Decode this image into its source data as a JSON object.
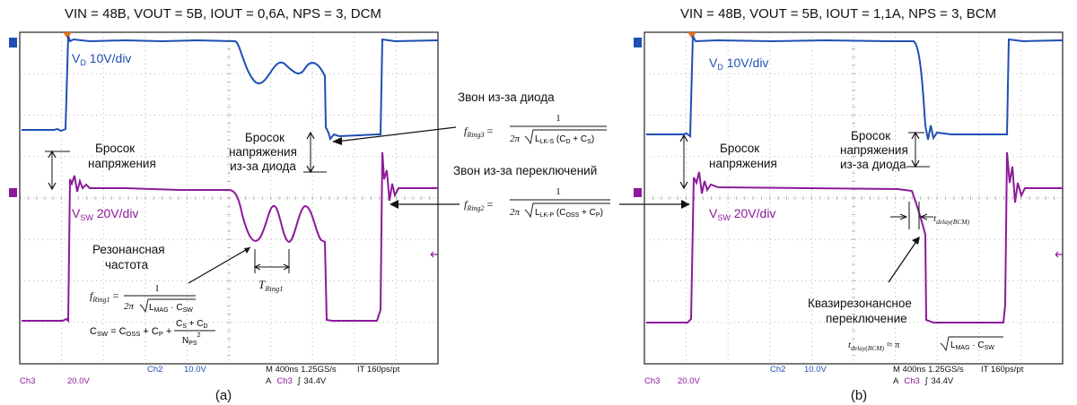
{
  "colors": {
    "vd": "#1f4fb4",
    "vsw": "#8c1a9a",
    "grid": "#b8b8b8",
    "frame": "#222222",
    "marker": "#e07020"
  },
  "panel_a": {
    "title": "VIN = 48В, VOUT = 5В, IOUT = 0,6А, NPS = 3, DCM",
    "vd_label_main": "V",
    "vd_label_sub": "D",
    "vd_label_rest": " 10V/div",
    "vsw_label_main": "V",
    "vsw_label_sub": "SW",
    "vsw_label_rest": " 20V/div",
    "surge": [
      "Бросок",
      "напряжения"
    ],
    "diode_surge": [
      "Бросок",
      "напряжения",
      "из-за диода"
    ],
    "resonant": [
      "Резонансная",
      "частота"
    ],
    "t_ring": "T",
    "t_ring_sub": "Ring1",
    "f_ring1_lhs": "f",
    "f_ring1_sub": "Ring1",
    "f_ring1_num": "1",
    "f_ring1_den_a": "2π",
    "f_ring1_den_b": "L",
    "f_ring1_den_b_sub": "MAG",
    "f_ring1_den_c": " · C",
    "f_ring1_den_c_sub": "SW",
    "csw_lhs": "C",
    "csw_lhs_sub": "SW",
    "csw_mid": " = C",
    "csw_mid_sub": "OSS",
    "csw_plus": " + C",
    "csw_plus_sub": "P",
    "csw_plus2": " +",
    "csw_num": "C",
    "csw_num_sub": "S",
    "csw_num_plus": " + C",
    "csw_num_sub2": "D",
    "csw_den": "N",
    "csw_den_sub": "PS",
    "csw_den_sup": "2",
    "status_ch3": "Ch3",
    "status_ch3_val": "20.0V",
    "status_ch2": "Ch2",
    "status_ch2_val": "10.0V",
    "status_m": "M 400ns  1.25GS/s",
    "status_it": "IT 160ps/pt",
    "status_a": "A",
    "status_a_ch": "Ch3",
    "status_a_sym": "∫",
    "status_a_val": "34.4V",
    "caption": "(a)"
  },
  "panel_b": {
    "title": "VIN = 48В, VOUT = 5В, IOUT = 1,1А, NPS = 3, BCM",
    "vd_label_main": "V",
    "vd_label_sub": "D",
    "vd_label_rest": " 10V/div",
    "vsw_label_main": "V",
    "vsw_label_sub": "SW",
    "vsw_label_rest": " 20V/div",
    "surge": [
      "Бросок",
      "напряжения"
    ],
    "diode_surge": [
      "Бросок",
      "напряжения",
      "из-за диода"
    ],
    "tdelay": "t",
    "tdelay_sub": "delay(BCM)",
    "quasi": [
      "Квазирезонансное",
      "переключение"
    ],
    "tdelay_formula_rhs": "≈ π",
    "tdelay_formula_a": "L",
    "tdelay_formula_a_sub": "MAG",
    "tdelay_formula_b": " · C",
    "tdelay_formula_b_sub": "SW",
    "status_ch3": "Ch3",
    "status_ch3_val": "20.0V",
    "status_ch2": "Ch2",
    "status_ch2_val": "10.0V",
    "status_m": "M 400ns  1.25GS/s",
    "status_it": "IT 160ps/pt",
    "status_a": "A",
    "status_a_ch": "Ch3",
    "status_a_sym": "∫",
    "status_a_val": "34.4V",
    "caption": "(b)"
  },
  "center": {
    "diode_ring_title": "Звон из-за диода",
    "f_ring3": "f",
    "f_ring3_sub": "Ring3",
    "f_ring3_num": "1",
    "f_ring3_den_a": "2π",
    "f_ring3_den_b": "L",
    "f_ring3_den_b_sub": "LK-S",
    "f_ring3_den_c": " (C",
    "f_ring3_den_c_sub": "D",
    "f_ring3_den_d": " + C",
    "f_ring3_den_d_sub": "S",
    "f_ring3_den_e": ")",
    "switch_ring_title": "Звон из-за переключений",
    "f_ring2": "f",
    "f_ring2_sub": "Ring2",
    "f_ring2_num": "1",
    "f_ring2_den_a": "2π",
    "f_ring2_den_b": "L",
    "f_ring2_den_b_sub": "LK-P",
    "f_ring2_den_c": " (C",
    "f_ring2_den_c_sub": "OSS",
    "f_ring2_den_d": " + C",
    "f_ring2_den_d_sub": "P",
    "f_ring2_den_e": ")"
  }
}
